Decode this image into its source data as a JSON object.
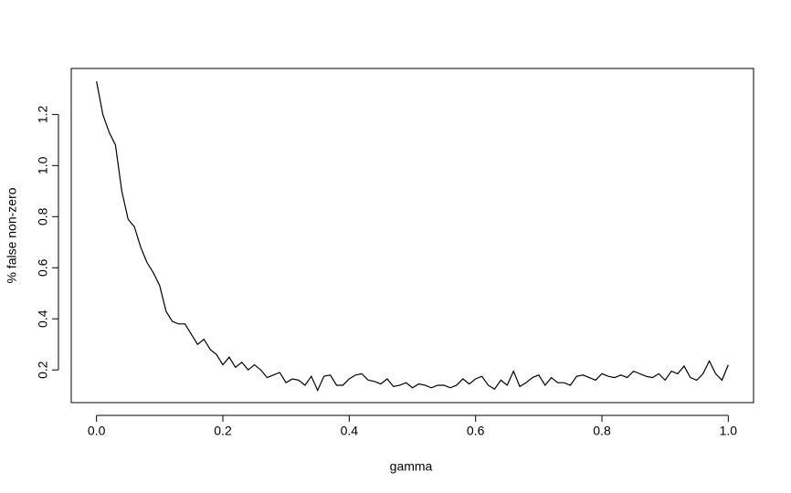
{
  "chart_data": {
    "type": "line",
    "xlabel": "gamma",
    "ylabel": "% false non-zero",
    "x": [
      0,
      0.01,
      0.02,
      0.03,
      0.04,
      0.05,
      0.06,
      0.07,
      0.08,
      0.09,
      0.1,
      0.11,
      0.12,
      0.13,
      0.14,
      0.15,
      0.16,
      0.17,
      0.18,
      0.19,
      0.2,
      0.21,
      0.22,
      0.23,
      0.24,
      0.25,
      0.26,
      0.27,
      0.28,
      0.29,
      0.3,
      0.31,
      0.32,
      0.33,
      0.34,
      0.35,
      0.36,
      0.37,
      0.38,
      0.39,
      0.4,
      0.41,
      0.42,
      0.43,
      0.44,
      0.45,
      0.46,
      0.47,
      0.48,
      0.49,
      0.5,
      0.51,
      0.52,
      0.53,
      0.54,
      0.55,
      0.56,
      0.57,
      0.58,
      0.59,
      0.6,
      0.61,
      0.62,
      0.63,
      0.64,
      0.65,
      0.66,
      0.67,
      0.68,
      0.69,
      0.7,
      0.71,
      0.72,
      0.73,
      0.74,
      0.75,
      0.76,
      0.77,
      0.78,
      0.79,
      0.8,
      0.81,
      0.82,
      0.83,
      0.84,
      0.85,
      0.86,
      0.87,
      0.88,
      0.89,
      0.9,
      0.91,
      0.92,
      0.93,
      0.94,
      0.95,
      0.96,
      0.97,
      0.98,
      0.99,
      1
    ],
    "values": [
      1.33,
      1.2,
      1.13,
      1.08,
      0.9,
      0.79,
      0.76,
      0.68,
      0.62,
      0.58,
      0.53,
      0.43,
      0.39,
      0.38,
      0.38,
      0.34,
      0.3,
      0.32,
      0.28,
      0.26,
      0.22,
      0.25,
      0.21,
      0.23,
      0.2,
      0.22,
      0.2,
      0.17,
      0.18,
      0.19,
      0.15,
      0.165,
      0.16,
      0.14,
      0.175,
      0.12,
      0.175,
      0.18,
      0.14,
      0.14,
      0.165,
      0.18,
      0.185,
      0.16,
      0.155,
      0.145,
      0.165,
      0.135,
      0.14,
      0.15,
      0.13,
      0.145,
      0.14,
      0.13,
      0.14,
      0.14,
      0.13,
      0.14,
      0.165,
      0.145,
      0.165,
      0.175,
      0.14,
      0.125,
      0.16,
      0.14,
      0.195,
      0.135,
      0.15,
      0.17,
      0.18,
      0.14,
      0.17,
      0.15,
      0.15,
      0.14,
      0.175,
      0.18,
      0.17,
      0.16,
      0.185,
      0.175,
      0.17,
      0.18,
      0.17,
      0.195,
      0.185,
      0.175,
      0.17,
      0.185,
      0.16,
      0.195,
      0.185,
      0.215,
      0.17,
      0.16,
      0.185,
      0.235,
      0.185,
      0.16,
      0.22
    ],
    "color": "#000000",
    "xlim": [
      -0.04,
      1.04
    ],
    "ylim": [
      0.072,
      1.38
    ],
    "xticks": [
      {
        "value": 0,
        "label": "0.0"
      },
      0.2,
      0.4,
      0.6,
      0.8,
      {
        "value": 1,
        "label": "1.0"
      }
    ],
    "yticks": [
      0.2,
      0.4,
      0.6,
      0.8,
      {
        "value": 1,
        "label": "1.0"
      },
      1.2
    ]
  }
}
